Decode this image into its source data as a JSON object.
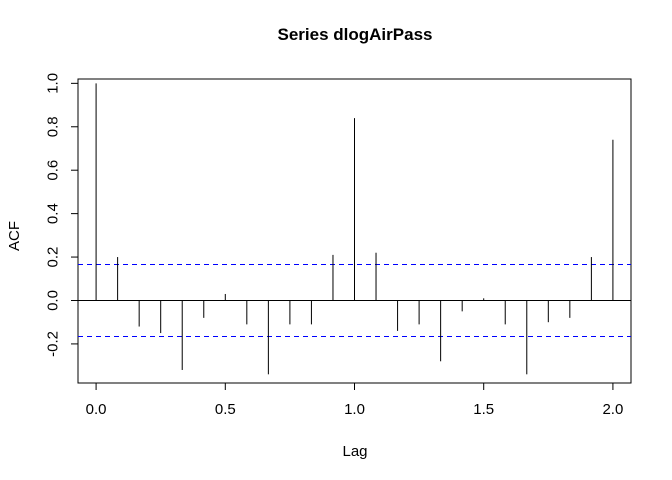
{
  "chart_data": {
    "type": "bar",
    "title": "Series  dlogAirPass",
    "xlabel": "Lag",
    "ylabel": "ACF",
    "xlim": [
      -0.07,
      2.07
    ],
    "ylim": [
      -0.38,
      1.02
    ],
    "x_ticks": [
      0.0,
      0.5,
      1.0,
      1.5,
      2.0
    ],
    "x_tick_labels": [
      "0.0",
      "0.5",
      "1.0",
      "1.5",
      "2.0"
    ],
    "y_ticks": [
      -0.2,
      0.0,
      0.2,
      0.4,
      0.6,
      0.8,
      1.0
    ],
    "y_tick_labels": [
      "-0.2",
      "0.0",
      "0.2",
      "0.4",
      "0.6",
      "0.8",
      "1.0"
    ],
    "confidence_band": 0.166,
    "confidence_color": "#0000ff",
    "zero_line": true,
    "grid": false,
    "series": [
      {
        "x": [
          0.0,
          0.0833,
          0.1667,
          0.25,
          0.3333,
          0.4167,
          0.5,
          0.5833,
          0.6667,
          0.75,
          0.8333,
          0.9167,
          1.0,
          1.0833,
          1.1667,
          1.25,
          1.3333,
          1.4167,
          1.5,
          1.5833,
          1.6667,
          1.75,
          1.8333,
          1.9167,
          2.0
        ],
        "values": [
          1.0,
          0.2,
          -0.12,
          -0.15,
          -0.32,
          -0.08,
          0.03,
          -0.11,
          -0.34,
          -0.11,
          -0.11,
          0.21,
          0.84,
          0.22,
          -0.14,
          -0.11,
          -0.28,
          -0.05,
          0.01,
          -0.11,
          -0.34,
          -0.1,
          -0.08,
          0.2,
          0.74
        ]
      }
    ]
  }
}
